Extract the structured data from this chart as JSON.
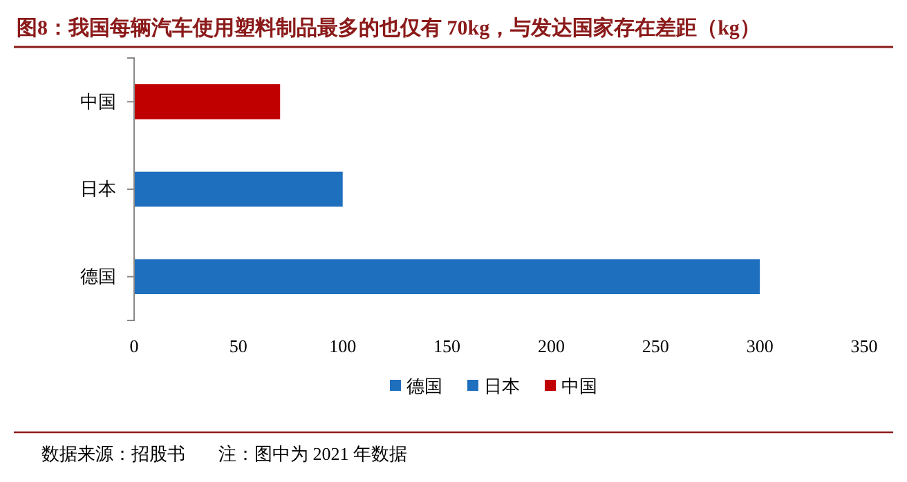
{
  "chart_data": {
    "type": "bar",
    "orientation": "horizontal",
    "title": "图8：我国每辆汽车使用塑料制品最多的也仅有 70kg，与发达国家存在差距（kg）",
    "categories": [
      "中国",
      "日本",
      "德国"
    ],
    "series": [
      {
        "name": "德国",
        "color": "#1f6fbf",
        "values": [
          null,
          null,
          300
        ]
      },
      {
        "name": "日本",
        "color": "#1f6fbf",
        "values": [
          null,
          100,
          null
        ]
      },
      {
        "name": "中国",
        "color": "#c00000",
        "values": [
          70,
          null,
          null
        ]
      }
    ],
    "xlim": [
      0,
      350
    ],
    "xticks": [
      0,
      50,
      100,
      150,
      200,
      250,
      300,
      350
    ],
    "grid": false,
    "legend": "bottom",
    "annotations": [
      "数据来源：招股书",
      "注：图中为 2021 年数据"
    ]
  }
}
